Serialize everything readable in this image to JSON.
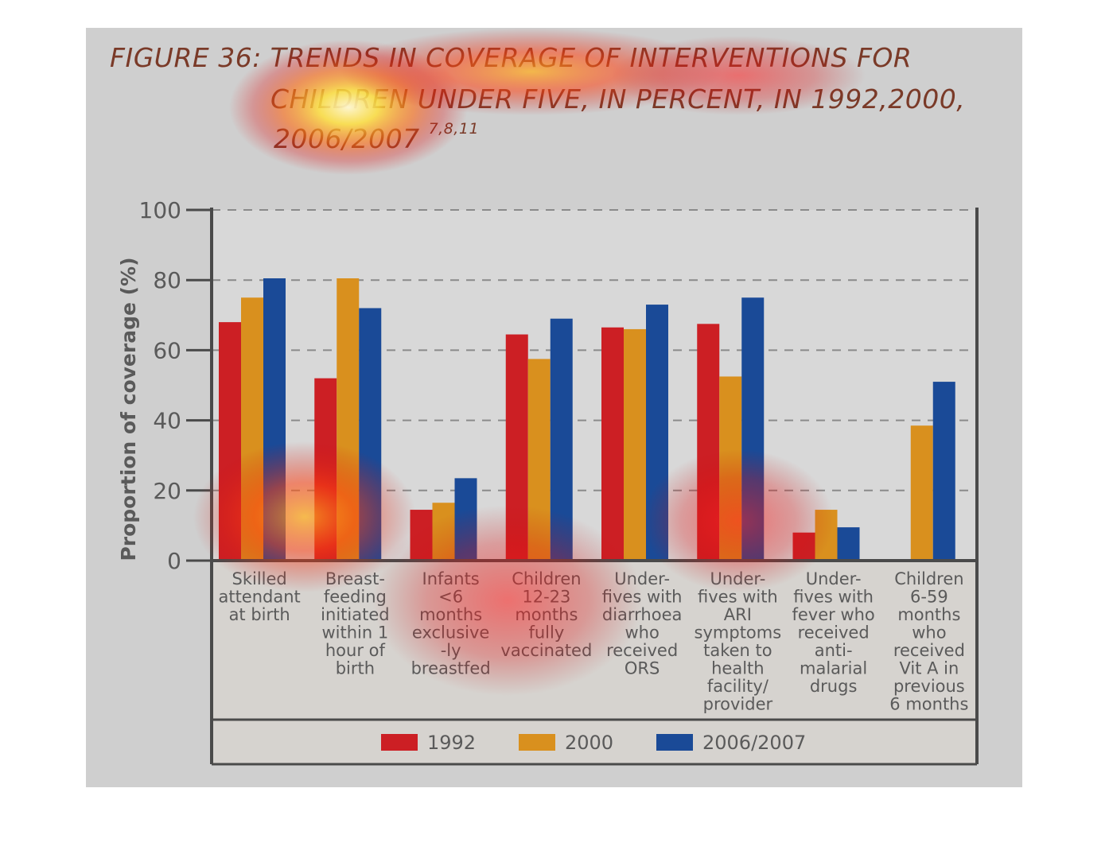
{
  "figure": {
    "title_line1": "FIGURE 36: TRENDS IN COVERAGE OF INTERVENTIONS FOR",
    "title_line2": "CHILDREN UNDER FIVE, IN PERCENT, IN 1992,2000,",
    "title_line3": "2006/2007",
    "title_refs": "7,8,11"
  },
  "colors": {
    "background": "#cfcfcf",
    "plot_bg": "#d8d8d8",
    "label_bg": "#d6d3cf",
    "axis": "#4a4a4a",
    "grid": "#8a8a8a",
    "text": "#5a5a5a",
    "series": [
      "#cc1f24",
      "#d9901e",
      "#1a4a97"
    ]
  },
  "chart_data": {
    "type": "bar",
    "title": "FIGURE 36: TRENDS IN COVERAGE OF INTERVENTIONS FOR CHILDREN UNDER FIVE, IN PERCENT, IN 1992,2000, 2006/2007",
    "xlabel": "",
    "ylabel": "Proportion of coverage (%)",
    "ylim": [
      0,
      100
    ],
    "yticks": [
      0,
      20,
      40,
      60,
      80,
      100
    ],
    "grid": true,
    "legend_position": "bottom",
    "categories": [
      [
        "Skilled",
        "attendant",
        "at birth"
      ],
      [
        "Breast-",
        "feeding",
        "initiated",
        "within 1",
        "hour of",
        "birth"
      ],
      [
        "Infants",
        "<6",
        "months",
        "exclusive",
        "-ly",
        "breastfed"
      ],
      [
        "Children",
        "12-23",
        "months",
        "fully",
        "vaccinated"
      ],
      [
        "Under-",
        "fives with",
        "diarrhoea",
        "who",
        "received",
        "ORS"
      ],
      [
        "Under-",
        "fives with",
        "ARI",
        "symptoms",
        "taken to",
        "health",
        "facility/",
        "provider"
      ],
      [
        "Under-",
        "fives with",
        "fever who",
        "received",
        "anti-",
        "malarial",
        "drugs"
      ],
      [
        "Children",
        "6-59",
        "months",
        "who",
        "received",
        "Vit A in",
        "previous",
        "6 months"
      ]
    ],
    "series": [
      {
        "name": "1992",
        "values": [
          68,
          52,
          14.5,
          64.5,
          66.5,
          67.5,
          8,
          null
        ]
      },
      {
        "name": "2000",
        "values": [
          75,
          80.5,
          16.5,
          57.5,
          66,
          52.5,
          14.5,
          38.5
        ]
      },
      {
        "name": "2006/2007",
        "values": [
          80.5,
          72,
          23.5,
          69,
          73,
          75,
          9.5,
          51
        ]
      }
    ]
  }
}
